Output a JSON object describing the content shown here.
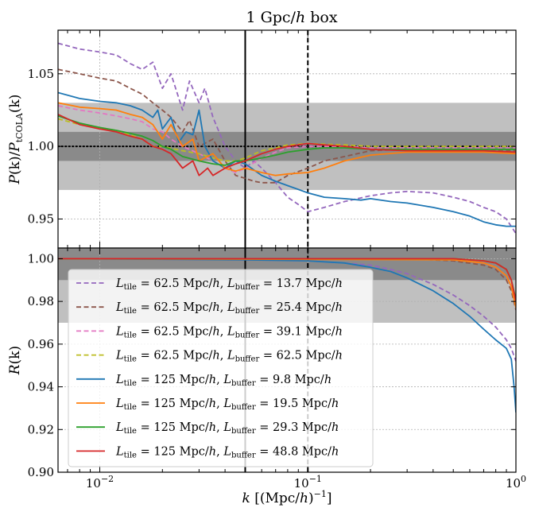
{
  "chart_data": [
    {
      "type": "line",
      "title": "1 Gpc/h box",
      "ylabel": "P(k)/P_tCOLA(k)",
      "xlabel": "",
      "xscale": "log",
      "xlim": [
        0.0063,
        1.0
      ],
      "ylim": [
        0.93,
        1.08
      ],
      "yticks": [
        0.95,
        1.0,
        1.05
      ],
      "ytick_labels": [
        "0.95",
        "1.00",
        "1.05"
      ],
      "grid": true,
      "bands": [
        {
          "y0": 0.97,
          "y1": 1.03,
          "color": "#c0c0c0"
        },
        {
          "y0": 0.99,
          "y1": 1.01,
          "color": "#8a8a8a"
        }
      ],
      "hlines": [
        {
          "y": 1.0,
          "style": "dotted",
          "color": "#000000"
        }
      ],
      "vlines": [
        {
          "x": 0.05,
          "style": "solid",
          "color": "#000000"
        },
        {
          "x": 0.1,
          "style": "dashed",
          "color": "#000000"
        }
      ],
      "series": [
        {
          "legend_index": 0,
          "color": "#9467bd",
          "dash": "dashed",
          "x": [
            0.0063,
            0.008,
            0.01,
            0.012,
            0.014,
            0.016,
            0.018,
            0.02,
            0.022,
            0.025,
            0.027,
            0.03,
            0.032,
            0.035,
            0.04,
            0.045,
            0.05,
            0.055,
            0.06,
            0.07,
            0.08,
            0.09,
            0.1,
            0.12,
            0.15,
            0.2,
            0.25,
            0.3,
            0.4,
            0.5,
            0.6,
            0.7,
            0.8,
            0.9,
            1.0
          ],
          "y": [
            1.071,
            1.067,
            1.065,
            1.063,
            1.057,
            1.053,
            1.058,
            1.04,
            1.05,
            1.025,
            1.045,
            1.03,
            1.04,
            1.02,
            1.0,
            0.99,
            0.985,
            0.99,
            0.985,
            0.975,
            0.965,
            0.96,
            0.955,
            0.958,
            0.962,
            0.966,
            0.968,
            0.969,
            0.968,
            0.965,
            0.962,
            0.958,
            0.955,
            0.95,
            0.94
          ]
        },
        {
          "legend_index": 1,
          "color": "#8c564b",
          "dash": "dashed",
          "x": [
            0.0063,
            0.008,
            0.01,
            0.012,
            0.014,
            0.016,
            0.018,
            0.02,
            0.022,
            0.025,
            0.027,
            0.03,
            0.035,
            0.04,
            0.045,
            0.05,
            0.055,
            0.06,
            0.07,
            0.08,
            0.1,
            0.12,
            0.15,
            0.2,
            0.3,
            0.5,
            0.7,
            1.0
          ],
          "y": [
            1.053,
            1.05,
            1.047,
            1.045,
            1.04,
            1.036,
            1.03,
            1.025,
            1.02,
            1.01,
            1.018,
            1.0,
            1.005,
            0.99,
            0.98,
            0.978,
            0.976,
            0.975,
            0.975,
            0.98,
            0.985,
            0.99,
            0.993,
            0.997,
            0.998,
            0.998,
            0.998,
            0.997
          ]
        },
        {
          "legend_index": 2,
          "color": "#e377c2",
          "dash": "dashed",
          "x": [
            0.0063,
            0.008,
            0.01,
            0.012,
            0.014,
            0.016,
            0.018,
            0.02,
            0.022,
            0.025,
            0.03,
            0.035,
            0.04,
            0.045,
            0.05,
            0.06,
            0.07,
            0.08,
            0.1,
            0.15,
            0.2,
            0.3,
            0.5,
            0.7,
            1.0
          ],
          "y": [
            1.028,
            1.025,
            1.023,
            1.021,
            1.019,
            1.017,
            1.012,
            1.01,
            1.005,
            1.0,
            0.995,
            0.99,
            0.985,
            0.982,
            0.985,
            0.992,
            0.996,
            0.999,
            1.0,
            1.0,
            0.999,
            0.999,
            0.999,
            0.999,
            0.999
          ]
        },
        {
          "legend_index": 3,
          "color": "#bcbd22",
          "dash": "dashed",
          "x": [
            0.0063,
            0.008,
            0.01,
            0.012,
            0.014,
            0.016,
            0.018,
            0.02,
            0.025,
            0.03,
            0.035,
            0.04,
            0.045,
            0.05,
            0.06,
            0.07,
            0.08,
            0.1,
            0.15,
            0.2,
            0.3,
            0.5,
            0.7,
            1.0
          ],
          "y": [
            1.019,
            1.015,
            1.013,
            1.011,
            1.008,
            1.005,
            1.0,
            1.0,
            0.997,
            0.995,
            0.992,
            0.99,
            0.99,
            0.992,
            0.997,
            0.999,
            1.001,
            1.002,
            1.001,
            1.0,
            1.0,
            1.0,
            1.0,
            1.0
          ]
        },
        {
          "legend_index": 4,
          "color": "#1f77b4",
          "dash": "solid",
          "x": [
            0.0063,
            0.008,
            0.01,
            0.012,
            0.014,
            0.016,
            0.018,
            0.019,
            0.02,
            0.022,
            0.024,
            0.026,
            0.028,
            0.03,
            0.032,
            0.035,
            0.04,
            0.045,
            0.05,
            0.06,
            0.07,
            0.08,
            0.1,
            0.12,
            0.15,
            0.18,
            0.2,
            0.25,
            0.3,
            0.4,
            0.5,
            0.6,
            0.7,
            0.8,
            0.9,
            1.0
          ],
          "y": [
            1.037,
            1.033,
            1.031,
            1.03,
            1.028,
            1.025,
            1.02,
            1.025,
            1.012,
            1.02,
            1.003,
            1.01,
            1.008,
            1.025,
            1.0,
            0.99,
            0.985,
            0.99,
            0.988,
            0.98,
            0.976,
            0.973,
            0.968,
            0.965,
            0.964,
            0.963,
            0.964,
            0.962,
            0.961,
            0.958,
            0.955,
            0.952,
            0.948,
            0.946,
            0.945,
            0.945
          ]
        },
        {
          "legend_index": 5,
          "color": "#ff7f0e",
          "dash": "solid",
          "x": [
            0.0063,
            0.008,
            0.01,
            0.012,
            0.014,
            0.016,
            0.018,
            0.02,
            0.022,
            0.025,
            0.028,
            0.03,
            0.035,
            0.04,
            0.045,
            0.05,
            0.06,
            0.07,
            0.08,
            0.1,
            0.12,
            0.15,
            0.2,
            0.3,
            0.5,
            0.7,
            1.0
          ],
          "y": [
            1.03,
            1.027,
            1.026,
            1.025,
            1.022,
            1.02,
            1.015,
            1.005,
            1.015,
            1.0,
            1.005,
            0.99,
            0.995,
            0.985,
            0.983,
            0.985,
            0.982,
            0.98,
            0.981,
            0.982,
            0.985,
            0.99,
            0.994,
            0.996,
            0.996,
            0.996,
            0.995
          ]
        },
        {
          "legend_index": 6,
          "color": "#2ca02c",
          "dash": "solid",
          "x": [
            0.0063,
            0.008,
            0.01,
            0.012,
            0.014,
            0.016,
            0.018,
            0.02,
            0.022,
            0.025,
            0.03,
            0.035,
            0.04,
            0.045,
            0.05,
            0.06,
            0.07,
            0.08,
            0.1,
            0.12,
            0.15,
            0.2,
            0.3,
            0.5,
            0.7,
            1.0
          ],
          "y": [
            1.021,
            1.016,
            1.013,
            1.011,
            1.009,
            1.007,
            1.004,
            1.0,
            0.998,
            0.993,
            0.99,
            0.988,
            0.987,
            0.99,
            0.99,
            0.992,
            0.994,
            0.996,
            0.998,
            0.999,
            0.999,
            0.998,
            0.998,
            0.998,
            0.998,
            0.998
          ]
        },
        {
          "legend_index": 7,
          "color": "#d62728",
          "dash": "solid",
          "x": [
            0.0063,
            0.008,
            0.01,
            0.012,
            0.014,
            0.016,
            0.018,
            0.02,
            0.022,
            0.025,
            0.028,
            0.03,
            0.033,
            0.035,
            0.04,
            0.045,
            0.05,
            0.06,
            0.07,
            0.08,
            0.1,
            0.12,
            0.15,
            0.2,
            0.3,
            0.5,
            0.7,
            1.0
          ],
          "y": [
            1.022,
            1.015,
            1.012,
            1.01,
            1.007,
            1.005,
            1.0,
            0.998,
            0.995,
            0.985,
            0.99,
            0.98,
            0.985,
            0.98,
            0.985,
            0.988,
            0.99,
            0.995,
            0.998,
            1.0,
            1.002,
            1.001,
            1.0,
            0.998,
            0.997,
            0.997,
            0.997,
            0.996
          ]
        }
      ]
    },
    {
      "type": "line",
      "title": "",
      "ylabel": "R(k)",
      "xlabel": "k [(Mpc/h)⁻¹]",
      "xscale": "log",
      "xlim": [
        0.0063,
        1.0
      ],
      "ylim": [
        0.9,
        1.005
      ],
      "yticks": [
        0.9,
        0.92,
        0.94,
        0.96,
        0.98,
        1.0
      ],
      "ytick_labels": [
        "0.90",
        "0.92",
        "0.94",
        "0.96",
        "0.98",
        "1.00"
      ],
      "xticks": [
        0.01,
        0.1,
        1.0
      ],
      "xtick_labels": [
        "10⁻²",
        "10⁻¹",
        "10⁰"
      ],
      "grid": true,
      "bands": [
        {
          "y0": 0.97,
          "y1": 1.005,
          "color": "#c0c0c0"
        },
        {
          "y0": 0.99,
          "y1": 1.005,
          "color": "#8a8a8a"
        }
      ],
      "vlines": [
        {
          "x": 0.05,
          "style": "solid",
          "color": "#000000"
        },
        {
          "x": 0.1,
          "style": "dashed",
          "color": "#000000"
        }
      ],
      "series": [
        {
          "legend_index": 0,
          "color": "#9467bd",
          "dash": "dashed",
          "x": [
            0.0063,
            0.05,
            0.1,
            0.15,
            0.2,
            0.25,
            0.3,
            0.4,
            0.5,
            0.6,
            0.7,
            0.8,
            0.9,
            0.95,
            1.0
          ],
          "y": [
            1.0,
            0.9995,
            0.999,
            0.998,
            0.997,
            0.995,
            0.993,
            0.988,
            0.983,
            0.978,
            0.973,
            0.968,
            0.962,
            0.958,
            0.952
          ]
        },
        {
          "legend_index": 1,
          "color": "#8c564b",
          "dash": "dashed",
          "x": [
            0.0063,
            0.3,
            0.5,
            0.7,
            0.8,
            0.9,
            0.95,
            1.0
          ],
          "y": [
            1.0,
            1.0,
            0.999,
            0.997,
            0.995,
            0.99,
            0.985,
            0.976
          ]
        },
        {
          "legend_index": 2,
          "color": "#e377c2",
          "dash": "dashed",
          "x": [
            0.0063,
            0.3,
            0.5,
            0.7,
            0.8,
            0.9,
            0.95,
            1.0
          ],
          "y": [
            1.0,
            1.0,
            0.9995,
            0.998,
            0.996,
            0.992,
            0.987,
            0.978
          ]
        },
        {
          "legend_index": 3,
          "color": "#bcbd22",
          "dash": "dashed",
          "x": [
            0.0063,
            0.5,
            0.7,
            0.8,
            0.9,
            0.95,
            1.0
          ],
          "y": [
            1.0,
            1.0,
            0.999,
            0.998,
            0.995,
            0.99,
            0.98
          ]
        },
        {
          "legend_index": 4,
          "color": "#1f77b4",
          "dash": "solid",
          "x": [
            0.0063,
            0.05,
            0.1,
            0.15,
            0.2,
            0.25,
            0.3,
            0.4,
            0.5,
            0.6,
            0.7,
            0.8,
            0.9,
            0.95,
            0.98,
            1.0
          ],
          "y": [
            1.0,
            0.9995,
            0.999,
            0.998,
            0.996,
            0.994,
            0.991,
            0.985,
            0.979,
            0.973,
            0.967,
            0.962,
            0.958,
            0.953,
            0.94,
            0.928
          ]
        },
        {
          "legend_index": 5,
          "color": "#ff7f0e",
          "dash": "solid",
          "x": [
            0.0063,
            0.5,
            0.7,
            0.8,
            0.9,
            0.95,
            1.0
          ],
          "y": [
            1.0,
            0.9995,
            0.998,
            0.996,
            0.992,
            0.987,
            0.977
          ]
        },
        {
          "legend_index": 6,
          "color": "#2ca02c",
          "dash": "solid",
          "x": [
            0.0063,
            0.5,
            0.7,
            0.8,
            0.9,
            0.95,
            1.0
          ],
          "y": [
            1.0,
            1.0,
            0.999,
            0.998,
            0.995,
            0.99,
            0.981
          ]
        },
        {
          "legend_index": 7,
          "color": "#d62728",
          "dash": "solid",
          "x": [
            0.0063,
            0.5,
            0.7,
            0.8,
            0.9,
            0.95,
            1.0
          ],
          "y": [
            1.0,
            1.0,
            0.999,
            0.998,
            0.995,
            0.99,
            0.98
          ]
        }
      ]
    }
  ],
  "legend": {
    "placement": "lower-left of bottom panel",
    "entries": [
      {
        "prefix": "L",
        "tile_sub": "tile",
        "tile_value": " = 62.5 Mpc/",
        "h": "h",
        "sep": ", ",
        "buffer_prefix": "L",
        "buffer_sub": "buffer",
        "buffer_value": " = 13.7 Mpc/",
        "h2": "h"
      },
      {
        "prefix": "L",
        "tile_sub": "tile",
        "tile_value": " = 62.5 Mpc/",
        "h": "h",
        "sep": ", ",
        "buffer_prefix": "L",
        "buffer_sub": "buffer",
        "buffer_value": " = 25.4 Mpc/",
        "h2": "h"
      },
      {
        "prefix": "L",
        "tile_sub": "tile",
        "tile_value": " = 62.5 Mpc/",
        "h": "h",
        "sep": ", ",
        "buffer_prefix": "L",
        "buffer_sub": "buffer",
        "buffer_value": " = 39.1 Mpc/",
        "h2": "h"
      },
      {
        "prefix": "L",
        "tile_sub": "tile",
        "tile_value": " = 62.5 Mpc/",
        "h": "h",
        "sep": ", ",
        "buffer_prefix": "L",
        "buffer_sub": "buffer",
        "buffer_value": " = 62.5 Mpc/",
        "h2": "h"
      },
      {
        "prefix": "L",
        "tile_sub": "tile",
        "tile_value": " = 125 Mpc/",
        "h": "h",
        "sep": ", ",
        "buffer_prefix": "L",
        "buffer_sub": "buffer",
        "buffer_value": " = 9.8 Mpc/",
        "h2": "h"
      },
      {
        "prefix": "L",
        "tile_sub": "tile",
        "tile_value": " = 125 Mpc/",
        "h": "h",
        "sep": ", ",
        "buffer_prefix": "L",
        "buffer_sub": "buffer",
        "buffer_value": " = 19.5 Mpc/",
        "h2": "h"
      },
      {
        "prefix": "L",
        "tile_sub": "tile",
        "tile_value": " = 125 Mpc/",
        "h": "h",
        "sep": ", ",
        "buffer_prefix": "L",
        "buffer_sub": "buffer",
        "buffer_value": " = 29.3 Mpc/",
        "h2": "h"
      },
      {
        "prefix": "L",
        "tile_sub": "tile",
        "tile_value": " = 125 Mpc/",
        "h": "h",
        "sep": ", ",
        "buffer_prefix": "L",
        "buffer_sub": "buffer",
        "buffer_value": " = 48.8 Mpc/",
        "h2": "h"
      }
    ]
  },
  "labels": {
    "title_main": "1 Gpc/",
    "title_h": "h",
    "title_tail": " box",
    "top_ylabel_P": "P",
    "top_ylabel_k1": "(k)/",
    "top_ylabel_P2": "P",
    "top_ylabel_sub": "tCOLA",
    "top_ylabel_k2": "(k)",
    "bottom_ylabel_R": "R",
    "bottom_ylabel_k": "(k)",
    "xlabel_k": "k",
    "xlabel_rest": " [(Mpc/",
    "xlabel_h": "h",
    "xlabel_close": ")",
    "xlabel_exp": "−1",
    "xlabel_end": "]",
    "xtick_base": "10",
    "xtick_exps": [
      "−2",
      "−1",
      "0"
    ]
  }
}
